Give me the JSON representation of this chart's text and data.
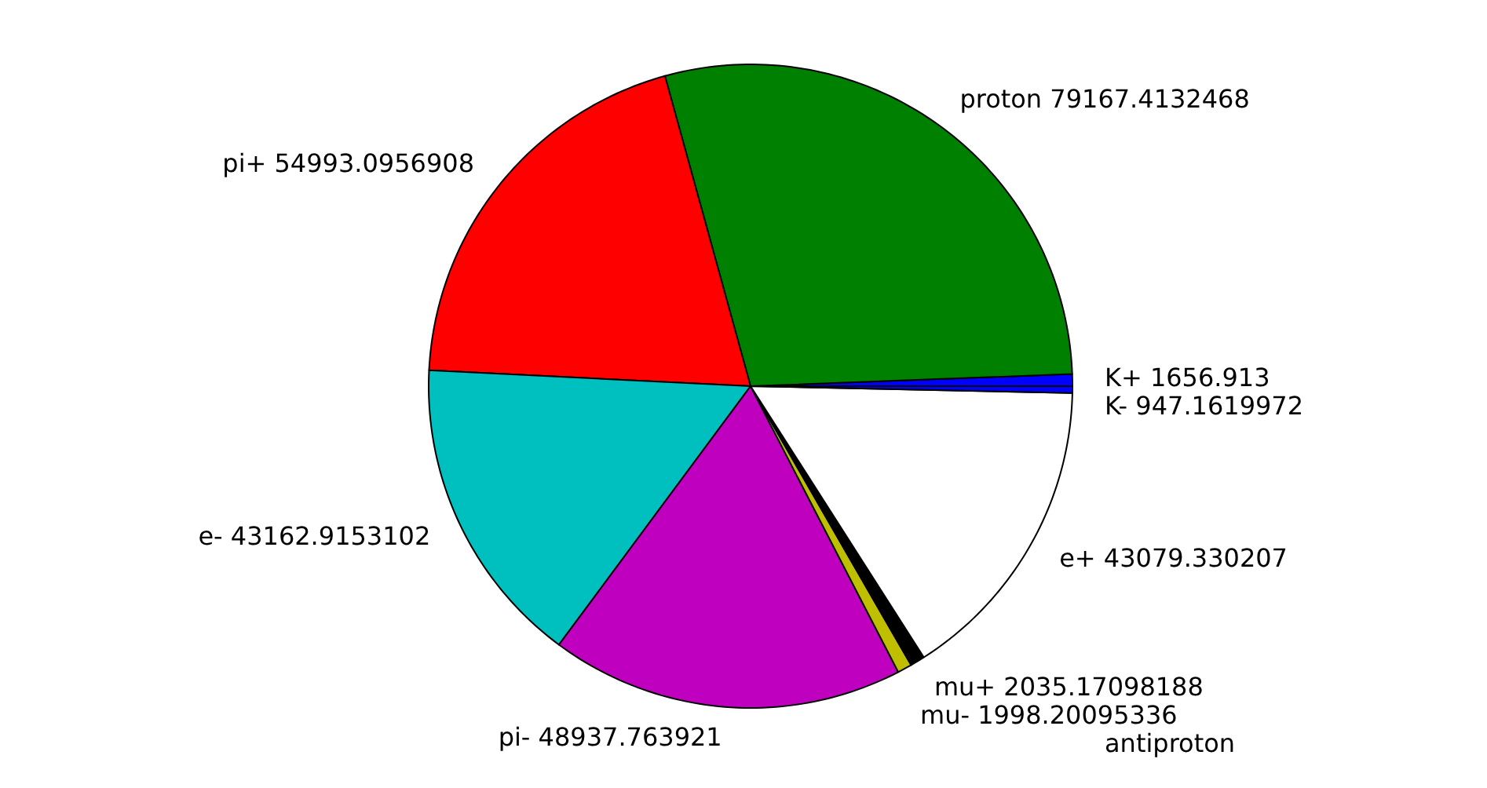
{
  "chart_data": {
    "type": "pie",
    "categories": [
      "K+",
      "proton",
      "pi+",
      "e-",
      "pi-",
      "mu-",
      "mu+",
      "e+",
      "K-",
      "antiproton"
    ],
    "values": [
      1656.913,
      79167.4132468,
      54993.0956908,
      43162.9153102,
      48937.763921,
      1998.20095336,
      2035.17098188,
      43079.330207,
      947.1619972,
      null
    ],
    "value_labels": [
      "1656.913",
      "79167.4132468",
      "54993.0956908",
      "43162.9153102",
      "48937.763921",
      "1998.20095336",
      "2035.17098188",
      "43079.330207",
      "947.1619972",
      null
    ],
    "colors": [
      "#0000ff",
      "#008000",
      "#ff0000",
      "#00bfbf",
      "#bf00bf",
      "#bfbf00",
      "#000000",
      "#ffffff",
      "#0000ff",
      null
    ]
  }
}
